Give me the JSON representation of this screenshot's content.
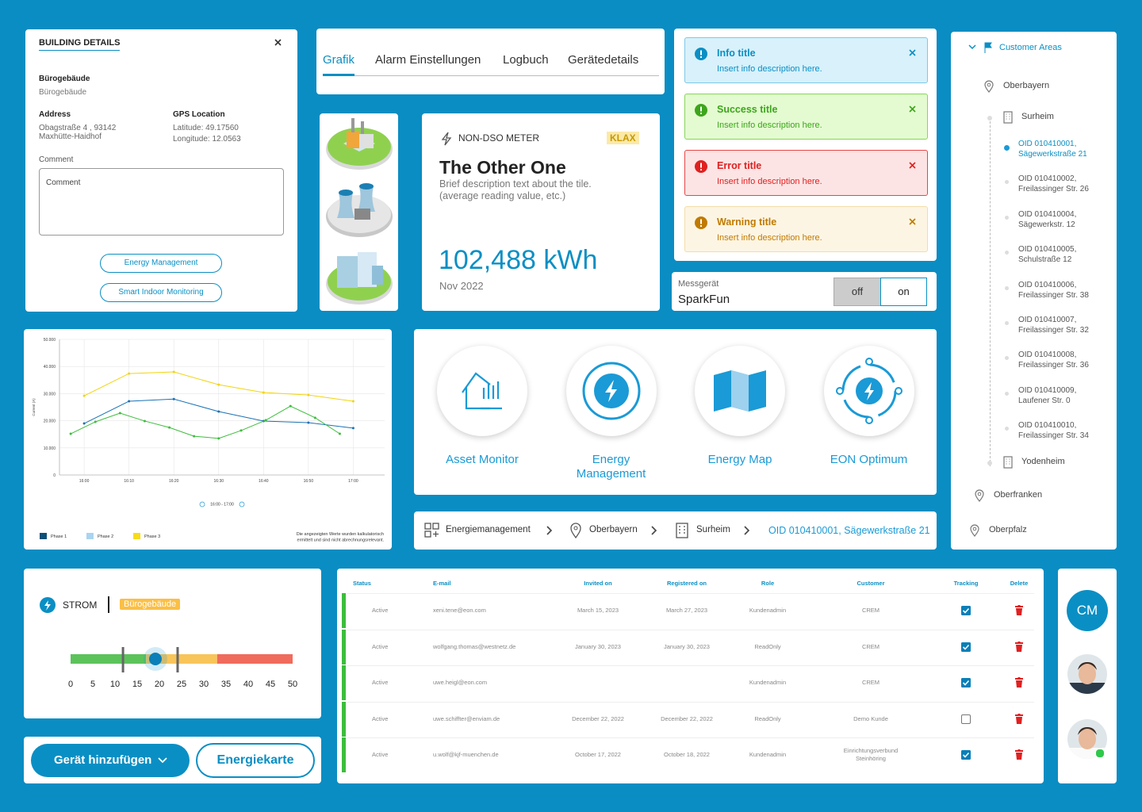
{
  "building": {
    "title": "BUILDING DETAILS",
    "name_label": "Bürogebäude",
    "name_value": "Bürogebäude",
    "address_label": "Address",
    "address_lines": [
      "Obagstraße 4 , 93142",
      "Maxhütte-Haidhof"
    ],
    "gps_label": "GPS Location",
    "gps_lines": [
      "Latitude: 49.17560",
      "Longitude: 12.0563"
    ],
    "comment_label": "Comment",
    "comment_placeholder": "Comment",
    "buttons": [
      "Energy Management",
      "Smart Indoor Monitoring"
    ]
  },
  "tabs": [
    "Grafik",
    "Alarm Einstellungen",
    "Logbuch",
    "Gerätedetails"
  ],
  "meter": {
    "label": "NON-DSO METER",
    "badge": "KLAX",
    "title": "The Other One",
    "description": "Brief description text about the tile. (average reading value, etc.)",
    "value": "102,488 kWh",
    "date": "Nov 2022"
  },
  "alerts": [
    {
      "title": "Info title",
      "text": "Insert info description here."
    },
    {
      "title": "Success title",
      "text": "Insert info description here."
    },
    {
      "title": "Error title",
      "text": "Insert info description here."
    },
    {
      "title": "Warning  title",
      "text": "Insert info description here."
    }
  ],
  "toggle": {
    "label": "Messgerät",
    "value": "SparkFun",
    "options": [
      "off",
      "on"
    ]
  },
  "apps": [
    "Asset Monitor",
    "Energy Management",
    "Energy Map",
    "EON Optimum"
  ],
  "breadcrumb": [
    "Energiemanagement",
    "Oberbayern",
    "Surheim",
    "OID 010410001, Sägewerkstraße 21"
  ],
  "tree": {
    "root": "Customer Areas",
    "regions": [
      "Oberbayern",
      "Oberfranken",
      "Oberpfalz"
    ],
    "sites": [
      "Surheim",
      "Yodenheim"
    ],
    "objects": [
      [
        "OID 010410001,",
        "Sägewerkstraße 21"
      ],
      [
        "OID 010410002,",
        "Freilassinger Str. 26"
      ],
      [
        "OID 010410004,",
        "Sägewerkstr. 12"
      ],
      [
        "OID 010410005,",
        "Schulstraße 12"
      ],
      [
        "OID 010410006,",
        "Freilassinger Str. 38"
      ],
      [
        "OID 010410007,",
        "Freilassinger Str. 32"
      ],
      [
        "OID 010410008,",
        "Freilassinger Str. 36"
      ],
      [
        "OID 010410009,",
        "Laufener Str. 0"
      ],
      [
        "OID 010410010,",
        "Freilassinger Str. 34"
      ]
    ]
  },
  "chart_data": {
    "type": "line",
    "y_label": "Current (A)",
    "range": "16:00 - 17:00",
    "note": [
      "Die angezeigten Werte wurden kalkulatorisch",
      "ermittelt und sind nicht abrechnungsrelevant."
    ],
    "xlim": [
      -5.5,
      67
    ],
    "xticks": [
      {
        "value": 0,
        "label": "16:00"
      },
      {
        "value": 10,
        "label": "16:10"
      },
      {
        "value": 20,
        "label": "16:20"
      },
      {
        "value": 30,
        "label": "16:30"
      },
      {
        "value": 40,
        "label": "16:40"
      },
      {
        "value": 50,
        "label": "16:50"
      },
      {
        "value": 60,
        "label": "17:00"
      }
    ],
    "ylim": [
      0,
      50000
    ],
    "yticks": [
      0,
      {
        "value": 10000,
        "label": "10.000"
      },
      {
        "value": 20000,
        "label": "20.000"
      },
      {
        "value": 30000,
        "label": "30.000"
      },
      {
        "value": 40000,
        "label": "40.000"
      },
      {
        "value": 50000,
        "label": "50.000"
      }
    ],
    "grid": true,
    "series": [
      {
        "name": "Phase 1",
        "color": "#1a72b5",
        "legend_color": "#0d4f78",
        "x": [
          0,
          10,
          20,
          30,
          40,
          50,
          60
        ],
        "values": [
          19000,
          27200,
          28000,
          23400,
          19900,
          19300,
          17300
        ]
      },
      {
        "name": "Phase 2",
        "color": "#3cbd3c",
        "legend_color": "#a9d4f0",
        "x": [
          -3,
          2.5,
          8,
          13.5,
          19,
          24.5,
          30,
          35,
          40.5,
          46,
          51.5,
          57
        ],
        "values": [
          15200,
          19600,
          22800,
          19900,
          17500,
          14300,
          13500,
          16400,
          20200,
          25400,
          21100,
          15200
        ]
      },
      {
        "name": "Phase 3",
        "color": "#f2d40c",
        "legend_color": "#f7dc1a",
        "x": [
          0,
          10,
          20,
          30,
          40,
          50,
          60
        ],
        "values": [
          29200,
          37400,
          38000,
          33300,
          30400,
          29500,
          27200
        ]
      }
    ]
  },
  "strom": {
    "label": "STROM",
    "badge": "Bürogebäude",
    "ticks": [
      0,
      5,
      10,
      15,
      20,
      25,
      30,
      35,
      40,
      45,
      50
    ],
    "zones": [
      {
        "from": 0,
        "to": 17,
        "color": "#5cc35a"
      },
      {
        "from": 17,
        "to": 33,
        "color": "#f8c55a"
      },
      {
        "from": 33,
        "to": 50,
        "color": "#f06b5c"
      }
    ],
    "markers": [
      11.8,
      24.1
    ],
    "value": 19.1
  },
  "actions": [
    "Gerät hinzufügen",
    "Energiekarte"
  ],
  "table": {
    "headers": [
      "Status",
      "E-mail",
      "Invited on",
      "Registered on",
      "Role",
      "Customer",
      "Tracking",
      "Delete"
    ],
    "rows": [
      {
        "status": "Active",
        "email": "xeni.tene@eon.com",
        "invited": "March 15, 2023",
        "registered": "March 27, 2023",
        "role": "Kundenadmin",
        "customer": "CREM",
        "tracking": true
      },
      {
        "status": "Active",
        "email": "wolfgang.thomas@westnetz.de",
        "invited": "January 30, 2023",
        "registered": "January 30, 2023",
        "role": "ReadOnly",
        "customer": "CREM",
        "tracking": true
      },
      {
        "status": "Active",
        "email": "uwe.heigl@eon.com",
        "invited": null,
        "registered": null,
        "role": "Kundenadmin",
        "customer": "CREM",
        "tracking": true
      },
      {
        "status": "Active",
        "email": "uwe.schiffter@enviam.de",
        "invited": "December 22, 2022",
        "registered": "December 22, 2022",
        "role": "ReadOnly",
        "customer": "Demo Kunde",
        "tracking": false
      },
      {
        "status": "Active",
        "email": "u.wolf@kjf-muenchen.de",
        "invited": "October 17, 2022",
        "registered": "October 18, 2022",
        "role": "Kundenadmin",
        "customer": "Einrichtungsverbund Steinhöring",
        "tracking": true
      }
    ]
  },
  "avatar": {
    "initials": "CM"
  }
}
